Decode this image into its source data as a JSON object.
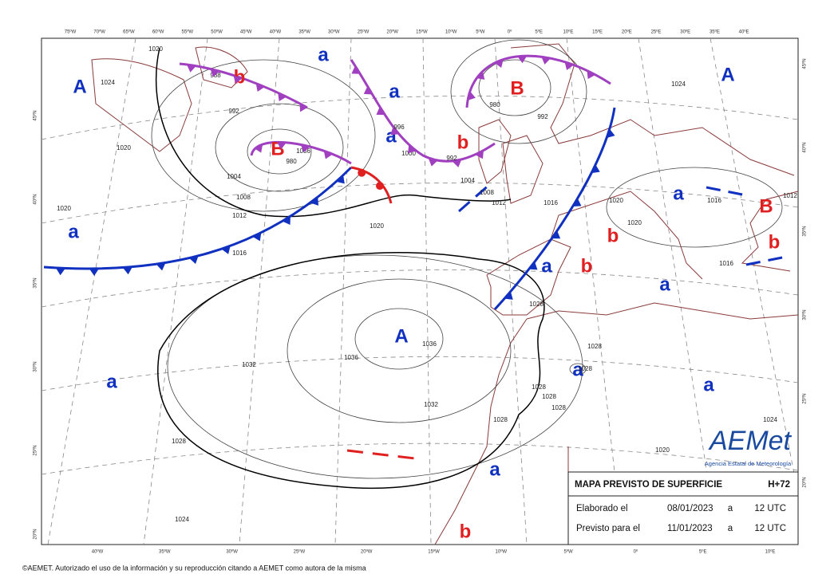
{
  "map": {
    "top_longitudes": [
      "75ºW",
      "70ºW",
      "65ºW",
      "60ºW",
      "55ºW",
      "50ºW",
      "45ºW",
      "40ºW",
      "35ºW",
      "30ºW",
      "25ºW",
      "20ºW",
      "15ºW",
      "10ºW",
      "5ºW",
      "0º",
      "5ºE",
      "10ºE",
      "15ºE",
      "20ºE",
      "25ºE",
      "30ºE",
      "35ºE",
      "40ºE"
    ],
    "bottom_longitudes": [
      "40ºW",
      "35ºW",
      "30ºW",
      "25ºW",
      "20ºW",
      "15ºW",
      "10ºW",
      "5ºW",
      "0º",
      "5ºE",
      "10ºE"
    ],
    "left_latitudes": [
      "45ºN",
      "40ºN",
      "35ºN",
      "30ºN",
      "25ºN",
      "20ºN"
    ],
    "right_latitudes": [
      "45ºN",
      "40ºN",
      "35ºN",
      "30ºN",
      "25ºN",
      "20ºN"
    ],
    "pressure_centers": [
      "A",
      "A",
      "A",
      "B",
      "B",
      "B",
      "b",
      "b",
      "b",
      "b",
      "b",
      "b",
      "a",
      "a",
      "a",
      "a",
      "a",
      "a",
      "a",
      "a",
      "a",
      "a",
      "a"
    ],
    "isobar_labels": [
      "1020",
      "1024",
      "1020",
      "1020",
      "988",
      "992",
      "980",
      "1004",
      "1008",
      "1012",
      "1016",
      "1020",
      "1036",
      "1036",
      "1032",
      "1032",
      "1028",
      "1028",
      "1024",
      "996",
      "1000",
      "992",
      "980",
      "992",
      "1004",
      "1008",
      "1012",
      "1016",
      "1020",
      "1020",
      "1028",
      "1028",
      "1028",
      "1028",
      "1028",
      "1028",
      "1024",
      "1016",
      "1012",
      "1016",
      "1024",
      "1020",
      "1036"
    ]
  },
  "info_box": {
    "title": "MAPA PREVISTO DE SUPERFICIE",
    "range": "H+72",
    "rows": [
      [
        "Elaborado el",
        "08/01/2023",
        "a",
        "12 UTC"
      ],
      [
        "Previsto para el",
        "11/01/2023",
        "a",
        "12 UTC"
      ]
    ]
  },
  "logo": {
    "name": "AEMet",
    "subtitle": "Agencia Estatal de Meteorología"
  },
  "copyright": "©AEMET. Autorizado el uso de la información y su reproducción citando a AEMET como autora de la misma"
}
